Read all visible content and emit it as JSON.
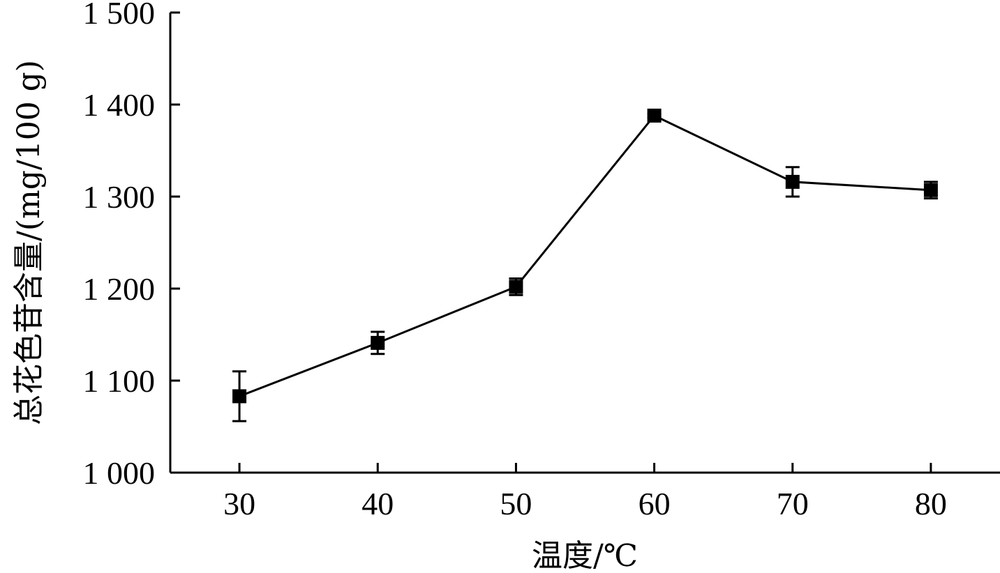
{
  "chart_data": {
    "type": "line",
    "title": "",
    "xlabel": "温度/℃",
    "ylabel": "总花色苷含量/(mg/100 g)",
    "x": [
      30,
      40,
      50,
      60,
      70,
      80
    ],
    "x_ticks": [
      "30",
      "40",
      "50",
      "60",
      "70",
      "80"
    ],
    "xlim": [
      25,
      85
    ],
    "ylim": [
      1000,
      1500
    ],
    "y_ticks": [
      1000,
      1100,
      1200,
      1300,
      1400,
      1500
    ],
    "y_tick_labels": [
      "1 000",
      "1 100",
      "1 200",
      "1 300",
      "1 400",
      "1 500"
    ],
    "grid": false,
    "series": [
      {
        "values": [
          1083,
          1141,
          1202,
          1388,
          1316,
          1307
        ],
        "errors": [
          27,
          12,
          9,
          2,
          16,
          9
        ],
        "marker": "square",
        "color": "#000000"
      }
    ]
  }
}
